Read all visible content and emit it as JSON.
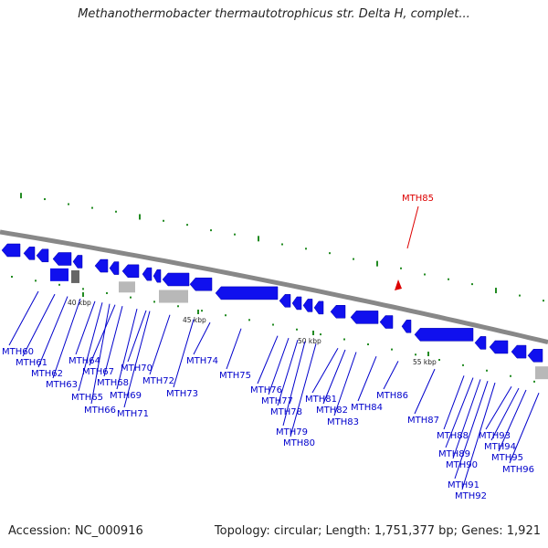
{
  "header": {
    "title": "Methanothermobacter thermautotrophicus str. Delta H, complet..."
  },
  "footer": {
    "accession": "Accession: NC_000916",
    "stats": "Topology: circular; Length: 1,751,377 bp; Genes: 1,921"
  },
  "colors": {
    "gene": "#1010ee",
    "rna": "#b8b8b8",
    "backbone": "#888888",
    "highlight": "#dd0000",
    "tick": "#228b22",
    "label": "#0000cc"
  },
  "scale_ticks": [
    "40 kbp",
    "45 kbp",
    "50 kbp",
    "55 kbp"
  ],
  "highlighted_gene": "MTH85",
  "genes": [
    "MTH60",
    "MTH61",
    "MTH62",
    "MTH63",
    "MTH64",
    "MTH65",
    "MTH66",
    "MTH67",
    "MTH68",
    "MTH69",
    "MTH70",
    "MTH71",
    "MTH72",
    "MTH73",
    "MTH74",
    "MTH75",
    "MTH76",
    "MTH77",
    "MTH78",
    "MTH79",
    "MTH80",
    "MTH81",
    "MTH82",
    "MTH83",
    "MTH84",
    "MTH85",
    "MTH86",
    "MTH87",
    "MTH88",
    "MTH89",
    "MTH90",
    "MTH91",
    "MTH92",
    "MTH93",
    "MTH94",
    "MTH95",
    "MTH96"
  ]
}
